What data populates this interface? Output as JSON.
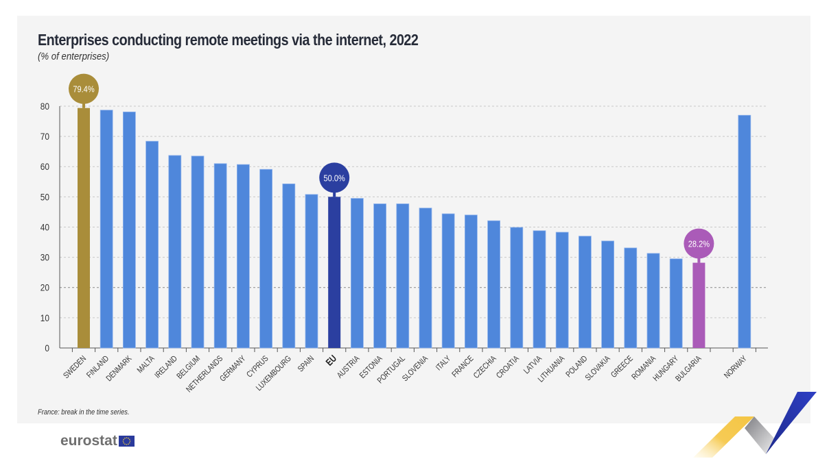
{
  "header": {
    "title": "Enterprises conducting remote meetings via the internet, 2022",
    "subtitle": "(% of enterprises)"
  },
  "footnote": "France: break in the time series.",
  "logo": {
    "text": "eurostat",
    "flag_icon": "eu-flag-icon"
  },
  "colors": {
    "bar": "#4f87db",
    "highlight_max": "#a98d3a",
    "highlight_eu": "#2b3fa0",
    "highlight_min": "#aa5bb8",
    "panel_bg": "#f4f4f4",
    "grid": "#c8c8c8",
    "axis": "#555555",
    "text": "#333333"
  },
  "chart_data": {
    "type": "bar",
    "title": "Enterprises conducting remote meetings via the internet, 2022",
    "subtitle": "(% of enterprises)",
    "xlabel": "",
    "ylabel": "",
    "ylim": [
      0,
      80
    ],
    "yticks": [
      0,
      10,
      20,
      30,
      40,
      50,
      60,
      70,
      80
    ],
    "grid": true,
    "legend": "none",
    "categories": [
      "SWEDEN",
      "FINLAND",
      "DENMARK",
      "MALTA",
      "IRELAND",
      "BELGIUM",
      "NETHERLANDS",
      "GERMANY",
      "CYPRUS",
      "LUXEMBOURG",
      "SPAIN",
      "EU",
      "AUSTRIA",
      "ESTONIA",
      "PORTUGAL",
      "SLOVENIA",
      "ITALY",
      "FRANCE",
      "CZECHIA",
      "CROATIA",
      "LATVIA",
      "LITHUANIA",
      "POLAND",
      "SLOVAKIA",
      "GREECE",
      "ROMANIA",
      "HUNGARY",
      "BULGARIA",
      "",
      "NORWAY"
    ],
    "values": [
      79.4,
      78.7,
      78.1,
      68.4,
      63.7,
      63.5,
      61.0,
      60.7,
      59.1,
      54.3,
      50.8,
      50.0,
      49.5,
      47.7,
      47.7,
      46.3,
      44.4,
      44.0,
      42.1,
      39.9,
      38.8,
      38.3,
      37.0,
      35.4,
      33.1,
      31.3,
      29.5,
      28.2,
      null,
      77.0
    ],
    "highlights": [
      {
        "category": "SWEDEN",
        "label": "79.4%",
        "role": "max"
      },
      {
        "category": "EU",
        "label": "50.0%",
        "role": "eu"
      },
      {
        "category": "BULGARIA",
        "label": "28.2%",
        "role": "min"
      }
    ],
    "bold_categories": [
      "EU"
    ],
    "annotations": [
      "France: break in the time series."
    ]
  }
}
